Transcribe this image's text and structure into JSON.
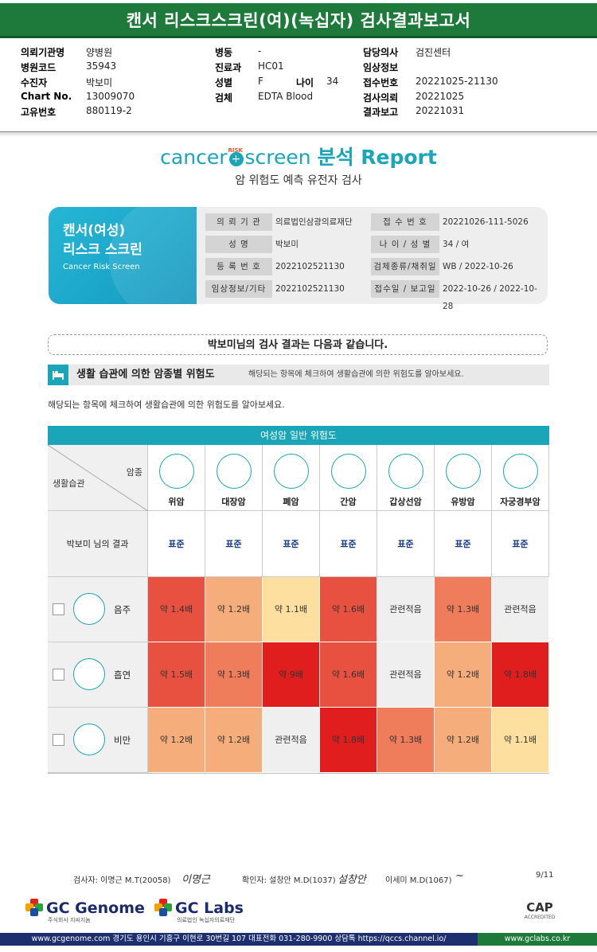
{
  "title": "캔서 리스크스크린(여)(녹십자) 검사결과보고서",
  "info": [
    {
      "k": "의뢰기관명",
      "v": "양병원"
    },
    {
      "k": "병원코드",
      "v": "35943"
    },
    {
      "k": "수진자",
      "v": "박보미"
    },
    {
      "k": "Chart No.",
      "v": "13009070"
    },
    {
      "k": "고유번호",
      "v": "880119-2"
    },
    {
      "k": "병동",
      "v": "-"
    },
    {
      "k": "진료과",
      "v": "HC01"
    },
    {
      "k": "성별",
      "v": "F"
    },
    {
      "k": "나이",
      "v": "34"
    },
    {
      "k": "검체",
      "v": "EDTA Blood"
    },
    {
      "k": "담당의사",
      "v": "검진센터"
    },
    {
      "k": "임상정보",
      "v": ""
    },
    {
      "k": "접수번호",
      "v": "20221025-21130"
    },
    {
      "k": "검사의뢰",
      "v": "20221025"
    },
    {
      "k": "결과보고",
      "v": "20221031"
    }
  ],
  "logo": {
    "cancer": "cancer",
    "risk": "RISK",
    "screen": "screen",
    "report": "분석 Report"
  },
  "subtitle": "암 위험도 예측 유전자 검사",
  "card": {
    "title_line1": "캔서(여성)",
    "title_line2": "리스크 스크린",
    "subtitle": "Cancer Risk Screen",
    "rows": [
      {
        "l1": "의 뢰 기 관",
        "v1": "의료법인삼광의료재단",
        "l2": "접 수 번 호",
        "v2": "20221026-111-5026"
      },
      {
        "l1": "성 명",
        "v1": "박보미",
        "l2": "나 이 / 성 별",
        "v2": "34 / 여"
      },
      {
        "l1": "등 록 번 호",
        "v1": "2022102521130",
        "l2": "검체종류/채취일",
        "v2": "WB / 2022-10-26"
      },
      {
        "l1": "임상정보/기타",
        "v1": "2022102521130",
        "l2": "접수일 / 보고일",
        "v2": "2022-10-26 / 2022-10-28"
      }
    ]
  },
  "result_intro": "박보미님의 검사 결과는 다음과 같습니다.",
  "section": {
    "title": "생활 습관에 의한 암종별 위험도",
    "desc": "해당되는 항목에 체크하여 생활습관에 의한 위험도를 알아보세요.",
    "note": "해당되는 항목에 체크하여 생활습관에 의한 위험도를 알아보세요."
  },
  "table": {
    "header": "여성암 일반 위험도",
    "corner_top": "암종",
    "corner_bottom": "생활습관",
    "cancers": [
      {
        "name": "위암",
        "icon": "stomach-icon"
      },
      {
        "name": "대장암",
        "icon": "colon-icon"
      },
      {
        "name": "폐암",
        "icon": "lung-icon"
      },
      {
        "name": "간암",
        "icon": "liver-icon"
      },
      {
        "name": "갑상선암",
        "icon": "thyroid-icon"
      },
      {
        "name": "유방암",
        "icon": "breast-icon"
      },
      {
        "name": "자궁경부암",
        "icon": "uterus-icon"
      }
    ],
    "std_label": "박보미 님의 결과",
    "std_values": [
      "표준",
      "표준",
      "표준",
      "표준",
      "표준",
      "표준",
      "표준"
    ],
    "habits": [
      {
        "name": "음주",
        "icon": "drink-icon",
        "cells": [
          {
            "text": "약 1.4배",
            "color": "#e8503f"
          },
          {
            "text": "약 1.2배",
            "color": "#f5ad7c"
          },
          {
            "text": "약 1.1배",
            "color": "#fde0a0"
          },
          {
            "text": "약 1.6배",
            "color": "#e8503f"
          },
          {
            "text": "관련적음",
            "color": "#efefef"
          },
          {
            "text": "약 1.3배",
            "color": "#ef7c5a"
          },
          {
            "text": "관련적음",
            "color": "#efefef"
          }
        ]
      },
      {
        "name": "흡연",
        "icon": "smoking-icon",
        "cells": [
          {
            "text": "약 1.5배",
            "color": "#e8503f"
          },
          {
            "text": "약 1.3배",
            "color": "#ef7c5a"
          },
          {
            "text": "약 9배",
            "color": "#e01e1e"
          },
          {
            "text": "약 1.6배",
            "color": "#e8503f"
          },
          {
            "text": "관련적음",
            "color": "#efefef"
          },
          {
            "text": "약 1.2배",
            "color": "#f5ad7c"
          },
          {
            "text": "약 1.8배",
            "color": "#e01e1e"
          }
        ]
      },
      {
        "name": "비만",
        "icon": "obesity-icon",
        "cells": [
          {
            "text": "약 1.2배",
            "color": "#f5ad7c"
          },
          {
            "text": "약 1.2배",
            "color": "#f5ad7c"
          },
          {
            "text": "관련적음",
            "color": "#efefef"
          },
          {
            "text": "약 1.8배",
            "color": "#e01e1e"
          },
          {
            "text": "약 1.3배",
            "color": "#ef7c5a"
          },
          {
            "text": "약 1.2배",
            "color": "#f5ad7c"
          },
          {
            "text": "약 1.1배",
            "color": "#fde0a0"
          }
        ]
      }
    ]
  },
  "signatures": {
    "tester": "검사자: 이명근 M.T(20058)",
    "tester_sign": "이명근",
    "confirm": "확인자: 설창안 M.D(1037)",
    "confirm_sign": "설창안",
    "second": "이세미 M.D(1067)",
    "second_sign": "~",
    "page": "9/11"
  },
  "footer": {
    "genome": "GC Genome",
    "genome_sub": "주식회사 지씨지놈",
    "labs": "GC Labs",
    "labs_sub": "의료법인 녹십자의료재단",
    "cap": "CAP",
    "cap_sub": "ACCREDITED",
    "address": "www.gcgenome.com 경기도 용인시 기흥구 이현로 30번길 107 대표전화 031-280-9900 상담톡 https://qccs.channel.io/",
    "site": "www.gclabs.co.kr"
  }
}
